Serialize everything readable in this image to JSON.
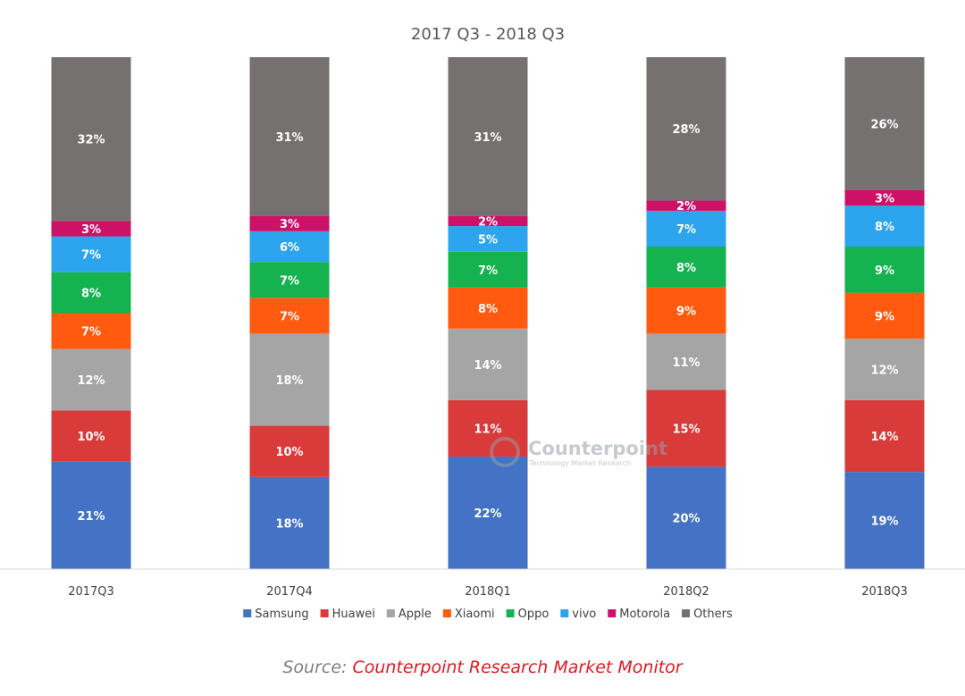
{
  "chart_data": {
    "type": "bar",
    "stacked": true,
    "title": "2017 Q3 - 2018 Q3",
    "xlabel": "",
    "ylabel": "",
    "ylim": [
      0,
      100
    ],
    "grid": false,
    "legend_position": "bottom",
    "categories": [
      "2017Q3",
      "2017Q4",
      "2018Q1",
      "2018Q2",
      "2018Q3"
    ],
    "series": [
      {
        "name": "Samsung",
        "color": "#4472c4",
        "values": [
          21,
          18,
          22,
          20,
          19
        ]
      },
      {
        "name": "Huawei",
        "color": "#d93a3a",
        "values": [
          10,
          10,
          11,
          15,
          14
        ]
      },
      {
        "name": "Apple",
        "color": "#a5a5a5",
        "values": [
          12,
          18,
          14,
          11,
          12
        ]
      },
      {
        "name": "Xiaomi",
        "color": "#ff5a10",
        "values": [
          7,
          7,
          8,
          9,
          9
        ]
      },
      {
        "name": "Oppo",
        "color": "#14b350",
        "values": [
          8,
          7,
          7,
          8,
          9
        ]
      },
      {
        "name": "vivo",
        "color": "#2ca4ee",
        "values": [
          7,
          6,
          5,
          7,
          8
        ]
      },
      {
        "name": "Motorola",
        "color": "#cc1166",
        "values": [
          3,
          3,
          2,
          2,
          3
        ]
      },
      {
        "name": "Others",
        "color": "#767171",
        "values": [
          32,
          31,
          31,
          28,
          26
        ]
      }
    ],
    "value_suffix": "%"
  },
  "watermark": {
    "name": "Counterpoint",
    "tagline": "Technology Market Research"
  },
  "source": {
    "prefix": "Source: ",
    "text": "Counterpoint Research Market Monitor",
    "link_color": "#e0191f"
  }
}
